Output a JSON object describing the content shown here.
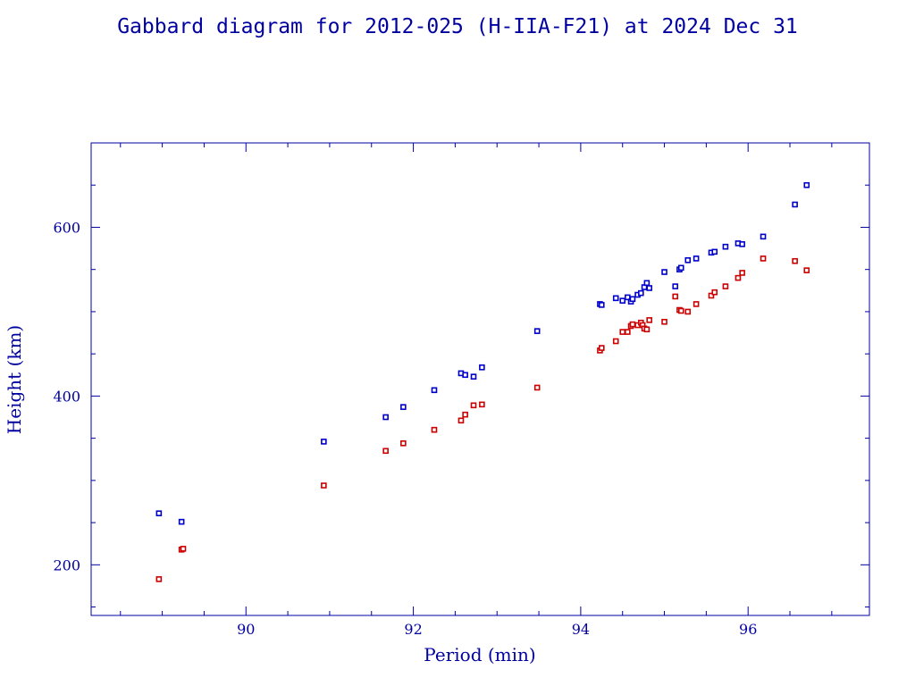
{
  "chart_data": {
    "type": "scatter",
    "title": "Gabbard diagram for 2012-025 (H-IIA-F21) at 2024 Dec 31",
    "xlabel": "Period (min)",
    "ylabel": "Height (km)",
    "xlim": [
      88.15,
      97.45
    ],
    "ylim": [
      140,
      700
    ],
    "x_ticks": [
      90,
      92,
      94,
      96
    ],
    "y_ticks": [
      200,
      400,
      600
    ],
    "x_minor_step": 0.5,
    "y_minor_step": 50,
    "grid": false,
    "legend": "none",
    "marker": "small-square",
    "series": [
      {
        "color": "#0000cc",
        "points": [
          [
            88.96,
            261
          ],
          [
            89.23,
            251
          ],
          [
            90.93,
            346
          ],
          [
            91.67,
            375
          ],
          [
            91.88,
            387
          ],
          [
            92.25,
            407
          ],
          [
            92.57,
            427
          ],
          [
            92.62,
            425
          ],
          [
            92.72,
            423
          ],
          [
            92.82,
            434
          ],
          [
            93.48,
            477
          ],
          [
            94.23,
            509
          ],
          [
            94.25,
            508
          ],
          [
            94.42,
            516
          ],
          [
            94.5,
            513
          ],
          [
            94.56,
            517
          ],
          [
            94.6,
            512
          ],
          [
            94.62,
            515
          ],
          [
            94.68,
            520
          ],
          [
            94.72,
            522
          ],
          [
            94.76,
            529
          ],
          [
            94.79,
            534
          ],
          [
            94.82,
            528
          ],
          [
            95.0,
            547
          ],
          [
            95.13,
            530
          ],
          [
            95.18,
            550
          ],
          [
            95.2,
            552
          ],
          [
            95.28,
            561
          ],
          [
            95.38,
            563
          ],
          [
            95.56,
            570
          ],
          [
            95.6,
            571
          ],
          [
            95.73,
            577
          ],
          [
            95.88,
            581
          ],
          [
            95.93,
            580
          ],
          [
            96.18,
            589
          ],
          [
            96.56,
            627
          ],
          [
            96.7,
            650
          ]
        ]
      },
      {
        "color": "#cc0000",
        "points": [
          [
            88.96,
            183
          ],
          [
            89.23,
            218
          ],
          [
            89.25,
            219
          ],
          [
            90.93,
            294
          ],
          [
            91.67,
            335
          ],
          [
            91.88,
            344
          ],
          [
            92.25,
            360
          ],
          [
            92.57,
            371
          ],
          [
            92.62,
            378
          ],
          [
            92.72,
            389
          ],
          [
            92.82,
            390
          ],
          [
            93.48,
            410
          ],
          [
            94.23,
            454
          ],
          [
            94.25,
            457
          ],
          [
            94.42,
            465
          ],
          [
            94.5,
            476
          ],
          [
            94.56,
            476
          ],
          [
            94.6,
            483
          ],
          [
            94.62,
            485
          ],
          [
            94.68,
            484
          ],
          [
            94.72,
            487
          ],
          [
            94.74,
            484
          ],
          [
            94.76,
            480
          ],
          [
            94.79,
            479
          ],
          [
            94.82,
            490
          ],
          [
            95.0,
            488
          ],
          [
            95.13,
            518
          ],
          [
            95.18,
            502
          ],
          [
            95.2,
            501
          ],
          [
            95.28,
            500
          ],
          [
            95.38,
            509
          ],
          [
            95.56,
            519
          ],
          [
            95.6,
            523
          ],
          [
            95.73,
            530
          ],
          [
            95.88,
            540
          ],
          [
            95.93,
            546
          ],
          [
            96.18,
            563
          ],
          [
            96.56,
            560
          ],
          [
            96.7,
            549
          ]
        ]
      }
    ]
  }
}
